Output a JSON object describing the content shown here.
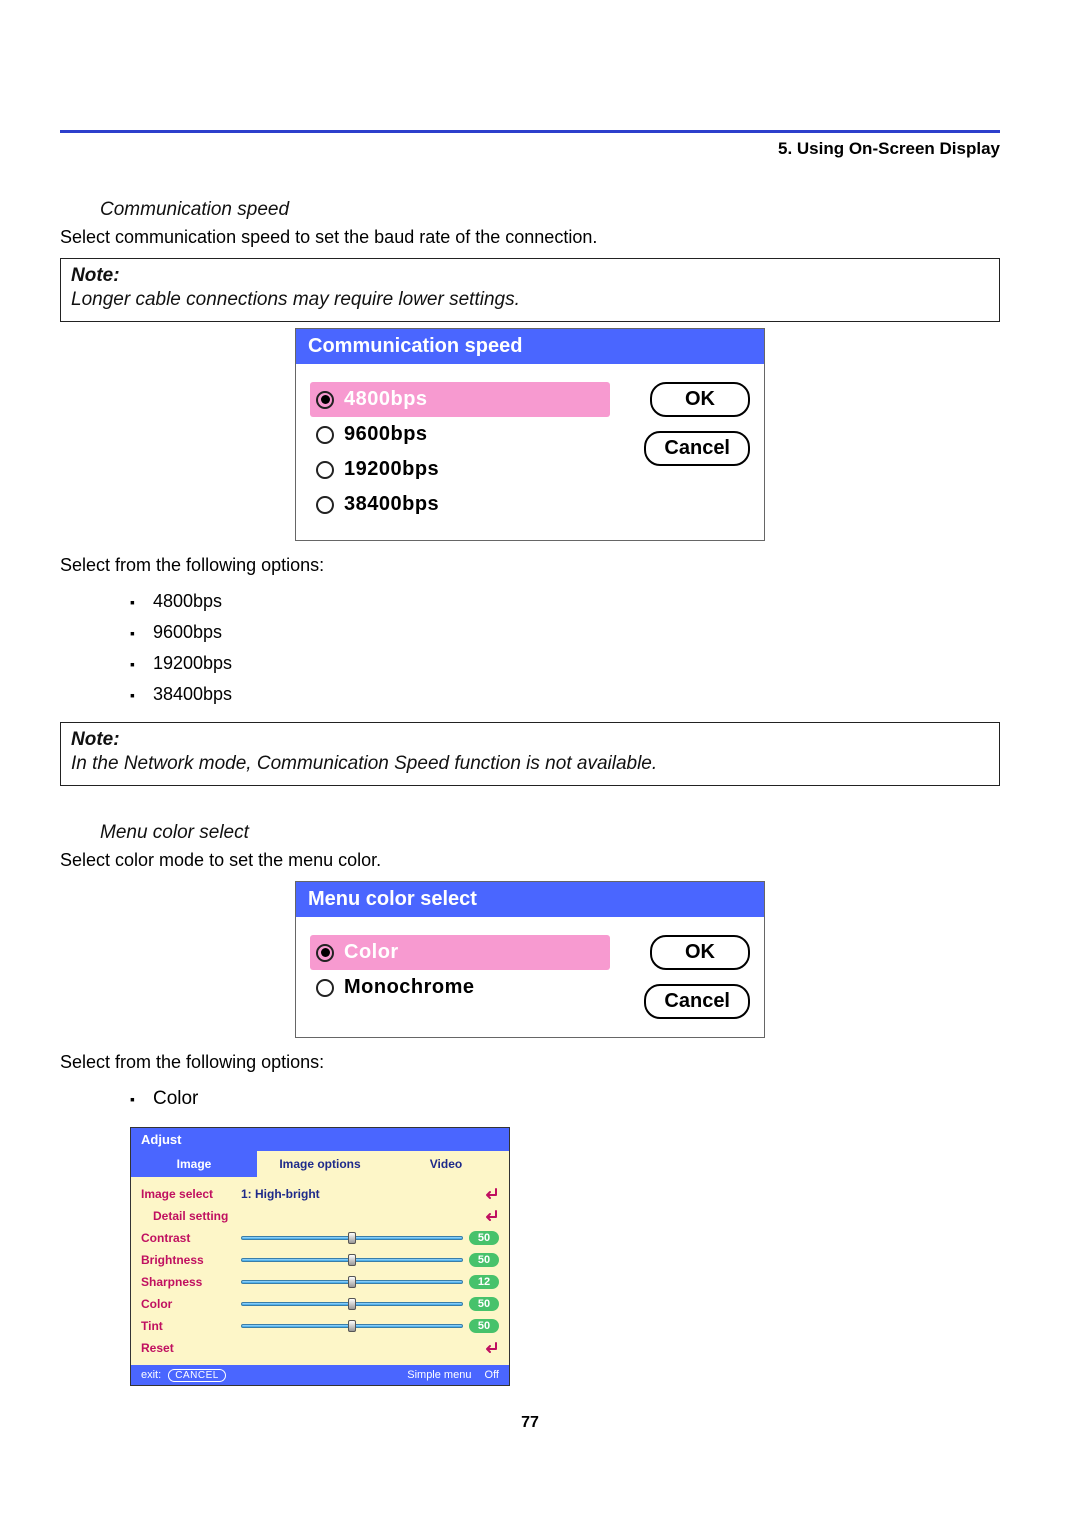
{
  "colors": {
    "rule": "#2d3fcc",
    "dialog_title_bg": "#4a66ff",
    "dialog_title_text": "#ffffff",
    "radio_selected_bg": "#f79ad0",
    "radio_selected_text": "#ffffff",
    "radio_unselected_text": "#000000",
    "ok_btn_border": "#000000",
    "osd_title_bg": "#4a66ff",
    "osd_tab_active_bg": "#4a66ff",
    "osd_tab_active_text": "#ffffff",
    "osd_tab_inactive_bg": "#fdf6c8",
    "osd_tab_inactive_text": "#1e2a8a",
    "osd_body_bg": "#fdf6c8",
    "osd_label_text": "#c01060",
    "osd_value_text": "#1e2a8a",
    "osd_badge_green": "#47c26b",
    "osd_footer_bg": "#4a66ff",
    "enter_icon": "#c01060"
  },
  "header": {
    "section": "5. Using On-Screen Display"
  },
  "comm_speed": {
    "heading": "Communication speed",
    "intro": "Select communication speed to set the baud rate of the connection.",
    "note_label": "Note:",
    "note_text": "Longer cable connections may require lower settings.",
    "dialog_title": "Communication speed",
    "options": [
      "4800bps",
      "9600bps",
      "19200bps",
      "38400bps"
    ],
    "selected_index": 0,
    "ok": "OK",
    "cancel": "Cancel",
    "options_intro": "Select from the following options:",
    "note2_label": "Note:",
    "note2_text": "In the Network mode, Communication Speed function is not available."
  },
  "menu_color": {
    "heading": "Menu color select",
    "intro": "Select color mode to set the menu color.",
    "dialog_title": "Menu color select",
    "options": [
      "Color",
      "Monochrome"
    ],
    "selected_index": 0,
    "ok": "OK",
    "cancel": "Cancel",
    "options_intro": "Select from the following options:",
    "bullet_color": "Color"
  },
  "osd": {
    "title": "Adjust",
    "tabs": [
      "Image",
      "Image options",
      "Video"
    ],
    "active_tab": 0,
    "rows": [
      {
        "label": "Image select",
        "value": "1: High-bright",
        "type": "enter"
      },
      {
        "label": "Detail setting",
        "indent": true,
        "type": "enter"
      },
      {
        "label": "Contrast",
        "type": "slider",
        "value": 50,
        "min": 0,
        "max": 100
      },
      {
        "label": "Brightness",
        "type": "slider",
        "value": 50,
        "min": 0,
        "max": 100
      },
      {
        "label": "Sharpness",
        "type": "slider",
        "value": 12,
        "min": 0,
        "max": 24
      },
      {
        "label": "Color",
        "type": "slider",
        "value": 50,
        "min": 0,
        "max": 100
      },
      {
        "label": "Tint",
        "type": "slider",
        "value": 50,
        "min": 0,
        "max": 100
      },
      {
        "label": "Reset",
        "type": "enter"
      }
    ],
    "footer": {
      "exit_label": "exit:",
      "cancel_pill": "CANCEL",
      "simple_menu_label": "Simple menu",
      "simple_menu_value": "Off"
    }
  },
  "page_number": "77"
}
